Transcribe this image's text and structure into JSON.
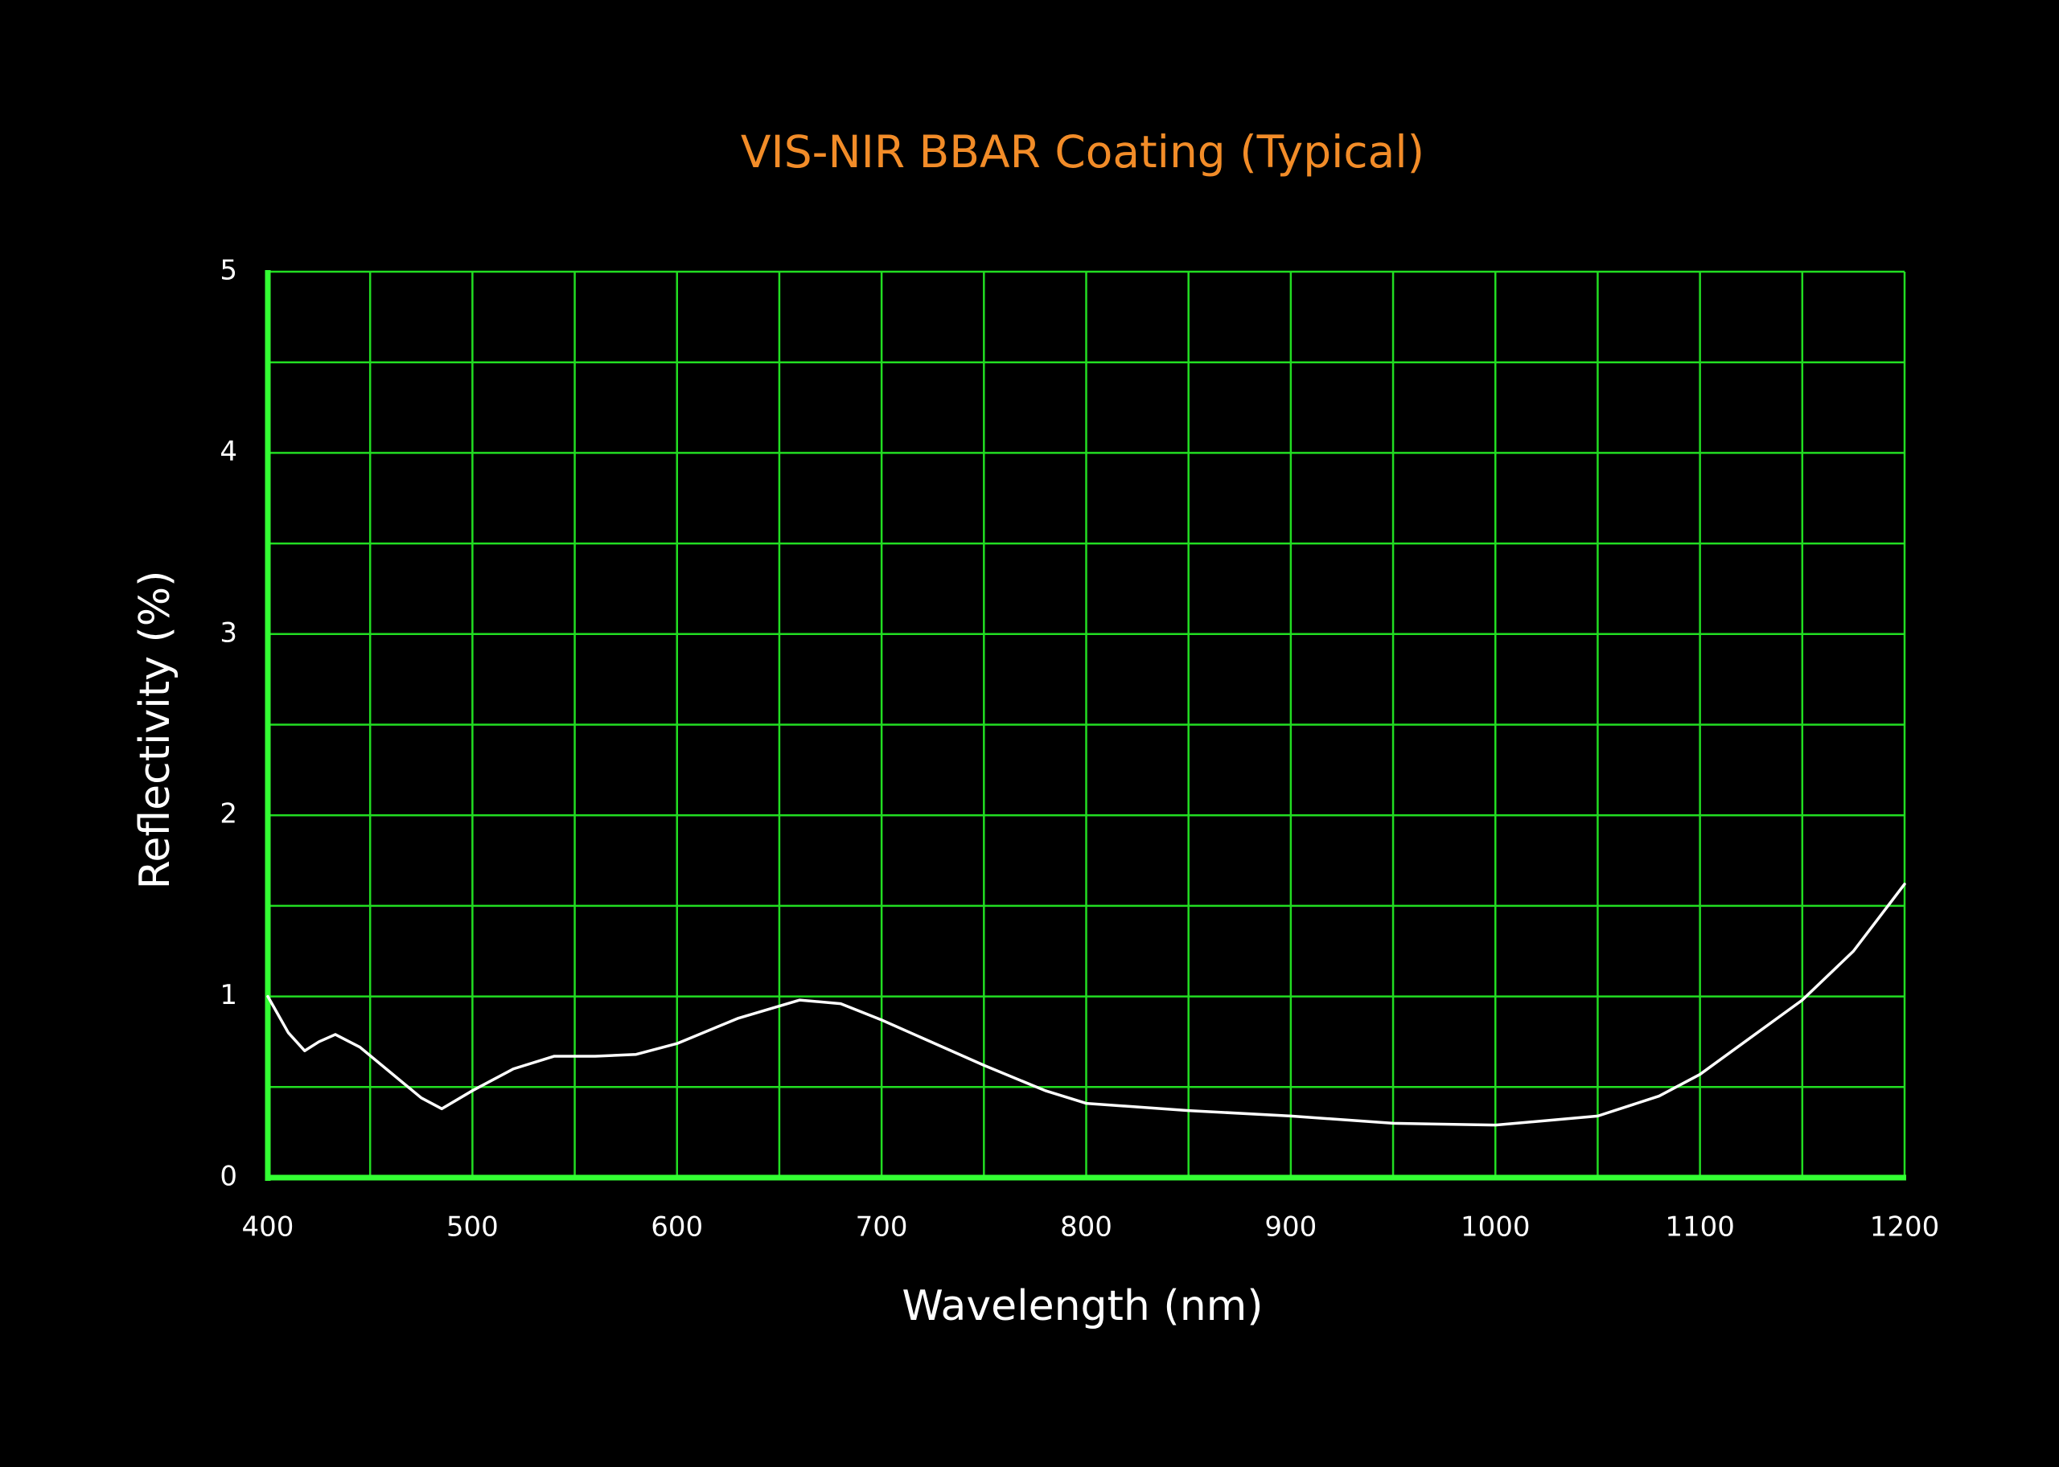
{
  "chart_data": {
    "type": "line",
    "title": "VIS-NIR BBAR Coating (Typical)",
    "x_label": "Wavelength (nm)",
    "y_label": "Reflectivity (%)",
    "x": [
      400,
      410,
      418,
      425,
      433,
      445,
      460,
      475,
      485,
      500,
      520,
      540,
      560,
      580,
      600,
      630,
      660,
      680,
      700,
      750,
      780,
      800,
      850,
      900,
      950,
      1000,
      1050,
      1080,
      1100,
      1150,
      1175,
      1200
    ],
    "series": [
      {
        "color": "#ffffff",
        "values": [
          1.0,
          0.8,
          0.7,
          0.75,
          0.79,
          0.72,
          0.58,
          0.44,
          0.38,
          0.48,
          0.6,
          0.67,
          0.67,
          0.68,
          0.74,
          0.88,
          0.98,
          0.96,
          0.87,
          0.62,
          0.48,
          0.41,
          0.37,
          0.34,
          0.3,
          0.29,
          0.34,
          0.45,
          0.57,
          0.98,
          1.25,
          1.62
        ]
      }
    ],
    "xlim": [
      400,
      1200
    ],
    "ylim": [
      0,
      5
    ],
    "xticks": [
      400,
      500,
      600,
      700,
      800,
      900,
      1000,
      1100,
      1200
    ],
    "yticks": [
      0,
      1,
      2,
      3,
      4,
      5
    ],
    "x_minor_ticks": [
      450,
      550,
      650,
      750,
      850,
      950,
      1050,
      1150
    ],
    "y_minor_ticks": [
      0.5,
      1.5,
      2.5,
      3.5,
      4.5
    ],
    "grid": true,
    "grid_color": "#22dd22",
    "axis_color": "#33ff33",
    "title_color": "#f28c28"
  }
}
